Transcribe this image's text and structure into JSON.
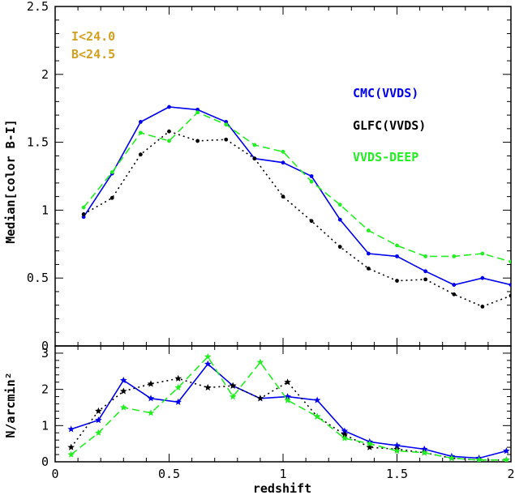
{
  "chart_data": [
    {
      "type": "line",
      "panel": "top",
      "ylabel": "Median[color B-I]",
      "xlabel": "",
      "xlim": [
        0,
        2
      ],
      "ylim": [
        0,
        2.5
      ],
      "yticks": [
        0,
        0.5,
        1,
        1.5,
        2,
        2.5
      ],
      "ytick_labels": [
        "0",
        "0.5",
        "1",
        "1.5",
        "2",
        "2.5"
      ],
      "annotations": [
        "I<24.0",
        "B<24.5"
      ],
      "annotation_color": "#d4a020",
      "series": [
        {
          "name": "CMC(VVDS)",
          "color": "#0000ee",
          "style": "solid",
          "x": [
            0.125,
            0.25,
            0.375,
            0.5,
            0.625,
            0.75,
            0.875,
            1.0,
            1.125,
            1.25,
            1.375,
            1.5,
            1.625,
            1.75,
            1.875,
            2.0
          ],
          "y": [
            0.95,
            1.27,
            1.65,
            1.76,
            1.74,
            1.65,
            1.38,
            1.35,
            1.25,
            0.93,
            0.68,
            0.66,
            0.55,
            0.45,
            0.5,
            0.45
          ]
        },
        {
          "name": "GLFC(VVDS)",
          "color": "#000000",
          "style": "dotted",
          "x": [
            0.125,
            0.25,
            0.375,
            0.5,
            0.625,
            0.75,
            0.875,
            1.0,
            1.125,
            1.25,
            1.375,
            1.5,
            1.625,
            1.75,
            1.875,
            2.0
          ],
          "y": [
            0.97,
            1.09,
            1.41,
            1.58,
            1.51,
            1.52,
            1.38,
            1.1,
            0.92,
            0.73,
            0.57,
            0.48,
            0.49,
            0.38,
            0.29,
            0.37
          ]
        },
        {
          "name": "VVDS-DEEP",
          "color": "#22ee22",
          "style": "dashed",
          "x": [
            0.125,
            0.25,
            0.375,
            0.5,
            0.625,
            0.75,
            0.875,
            1.0,
            1.125,
            1.25,
            1.375,
            1.5,
            1.625,
            1.75,
            1.875,
            2.0
          ],
          "y": [
            1.02,
            1.28,
            1.57,
            1.51,
            1.72,
            1.63,
            1.48,
            1.43,
            1.21,
            1.04,
            0.85,
            0.74,
            0.66,
            0.66,
            0.68,
            0.62
          ]
        }
      ],
      "legend": [
        {
          "label": "CMC(VVDS)",
          "color": "#0000ee"
        },
        {
          "label": "GLFC(VVDS)",
          "color": "#000000"
        },
        {
          "label": "VVDS-DEEP",
          "color": "#22ee22"
        }
      ]
    },
    {
      "type": "line",
      "panel": "bottom",
      "ylabel": "N/arcmin²",
      "xlabel": "redshift",
      "xlim": [
        0,
        2
      ],
      "ylim": [
        0,
        3.2
      ],
      "xticks": [
        0,
        0.5,
        1,
        1.5,
        2
      ],
      "xtick_labels": [
        "0",
        "0.5",
        "1",
        "1.5",
        "2"
      ],
      "yticks": [
        0,
        1,
        2,
        3
      ],
      "ytick_labels": [
        "0",
        "1",
        "2",
        "3"
      ],
      "series": [
        {
          "name": "CMC(VVDS)",
          "color": "#0000ee",
          "style": "solid",
          "x": [
            0.07,
            0.19,
            0.3,
            0.42,
            0.54,
            0.67,
            0.78,
            0.9,
            1.02,
            1.15,
            1.27,
            1.38,
            1.5,
            1.62,
            1.74,
            1.86,
            1.98
          ],
          "y": [
            0.9,
            1.15,
            2.25,
            1.75,
            1.65,
            2.7,
            2.1,
            1.75,
            1.8,
            1.7,
            0.85,
            0.55,
            0.45,
            0.35,
            0.15,
            0.1,
            0.3
          ]
        },
        {
          "name": "GLFC(VVDS)",
          "color": "#000000",
          "style": "dotted",
          "x": [
            0.07,
            0.19,
            0.3,
            0.42,
            0.54,
            0.67,
            0.78,
            0.9,
            1.02,
            1.15,
            1.27,
            1.38,
            1.5,
            1.62,
            1.74,
            1.86,
            1.98
          ],
          "y": [
            0.4,
            1.4,
            1.95,
            2.15,
            2.3,
            2.05,
            2.1,
            1.75,
            2.2,
            1.25,
            0.75,
            0.4,
            0.35,
            0.25,
            0.1,
            0.05,
            0.05
          ]
        },
        {
          "name": "VVDS-DEEP",
          "color": "#22ee22",
          "style": "dashed",
          "x": [
            0.07,
            0.19,
            0.3,
            0.42,
            0.54,
            0.67,
            0.78,
            0.9,
            1.02,
            1.15,
            1.27,
            1.38,
            1.5,
            1.62,
            1.74,
            1.86,
            1.98
          ],
          "y": [
            0.2,
            0.8,
            1.5,
            1.35,
            2.05,
            2.9,
            1.8,
            2.75,
            1.7,
            1.25,
            0.65,
            0.5,
            0.3,
            0.25,
            0.1,
            0.05,
            0.05
          ]
        }
      ]
    }
  ]
}
